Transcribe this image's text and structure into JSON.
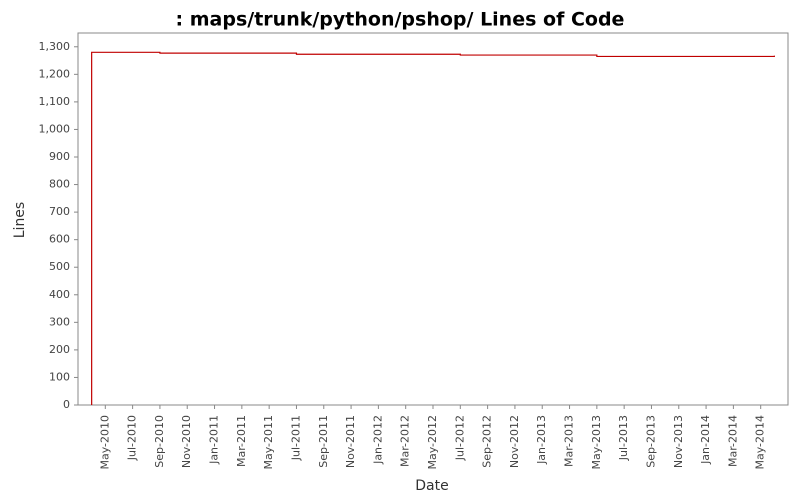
{
  "chart_data": {
    "type": "step-line",
    "title": ": maps/trunk/python/pshop/ Lines of Code",
    "x_label": "Date",
    "y_label": "Lines",
    "x": [
      "2010-04",
      "2010-04",
      "2010-09",
      "2011-07",
      "2012-07",
      "2013-05",
      "2014-06"
    ],
    "series": [
      {
        "name": "Lines",
        "color": "#c00000",
        "values": [
          0,
          1280,
          1277,
          1273,
          1270,
          1265,
          1268
        ]
      }
    ],
    "xlim": [
      "2010-03",
      "2014-07"
    ],
    "xticks": [
      {
        "value": "2010-05",
        "label": "May-2010"
      },
      {
        "value": "2010-07",
        "label": "Jul-2010"
      },
      {
        "value": "2010-09",
        "label": "Sep-2010"
      },
      {
        "value": "2010-11",
        "label": "Nov-2010"
      },
      {
        "value": "2011-01",
        "label": "Jan-2011"
      },
      {
        "value": "2011-03",
        "label": "Mar-2011"
      },
      {
        "value": "2011-05",
        "label": "May-2011"
      },
      {
        "value": "2011-07",
        "label": "Jul-2011"
      },
      {
        "value": "2011-09",
        "label": "Sep-2011"
      },
      {
        "value": "2011-11",
        "label": "Nov-2011"
      },
      {
        "value": "2012-01",
        "label": "Jan-2012"
      },
      {
        "value": "2012-03",
        "label": "Mar-2012"
      },
      {
        "value": "2012-05",
        "label": "May-2012"
      },
      {
        "value": "2012-07",
        "label": "Jul-2012"
      },
      {
        "value": "2012-09",
        "label": "Sep-2012"
      },
      {
        "value": "2012-11",
        "label": "Nov-2012"
      },
      {
        "value": "2013-01",
        "label": "Jan-2013"
      },
      {
        "value": "2013-03",
        "label": "Mar-2013"
      },
      {
        "value": "2013-05",
        "label": "May-2013"
      },
      {
        "value": "2013-07",
        "label": "Jul-2013"
      },
      {
        "value": "2013-09",
        "label": "Sep-2013"
      },
      {
        "value": "2013-11",
        "label": "Nov-2013"
      },
      {
        "value": "2014-01",
        "label": "Jan-2014"
      },
      {
        "value": "2014-03",
        "label": "Mar-2014"
      },
      {
        "value": "2014-05",
        "label": "May-2014"
      }
    ],
    "ylim": [
      0,
      1350
    ],
    "yticks": [
      0,
      100,
      200,
      300,
      400,
      500,
      600,
      700,
      800,
      900,
      {
        "value": 1000,
        "label": "1,000"
      },
      {
        "value": 1100,
        "label": "1,100"
      },
      {
        "value": 1200,
        "label": "1,200"
      },
      {
        "value": 1300,
        "label": "1,300"
      }
    ],
    "grid": false
  }
}
